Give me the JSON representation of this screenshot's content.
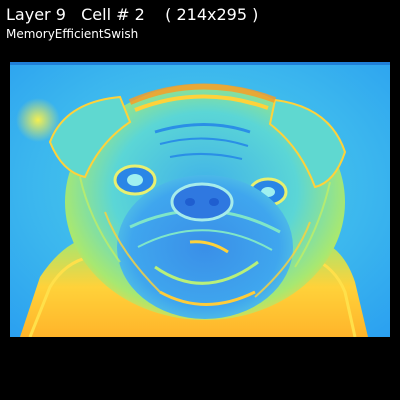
{
  "header": {
    "title": "Layer 9   Cell # 2    ( 214x295 )",
    "subtitle": "MemoryEfficientSwish"
  },
  "feature_map": {
    "colormap": "jet",
    "content": "pug-face-activation-map",
    "colors": {
      "background": "#000000",
      "low": "#29a0ee",
      "mid": "#5fe0d0",
      "high": "#ffd23a",
      "peak": "#ff9a1e",
      "text": "#ffffff"
    }
  }
}
